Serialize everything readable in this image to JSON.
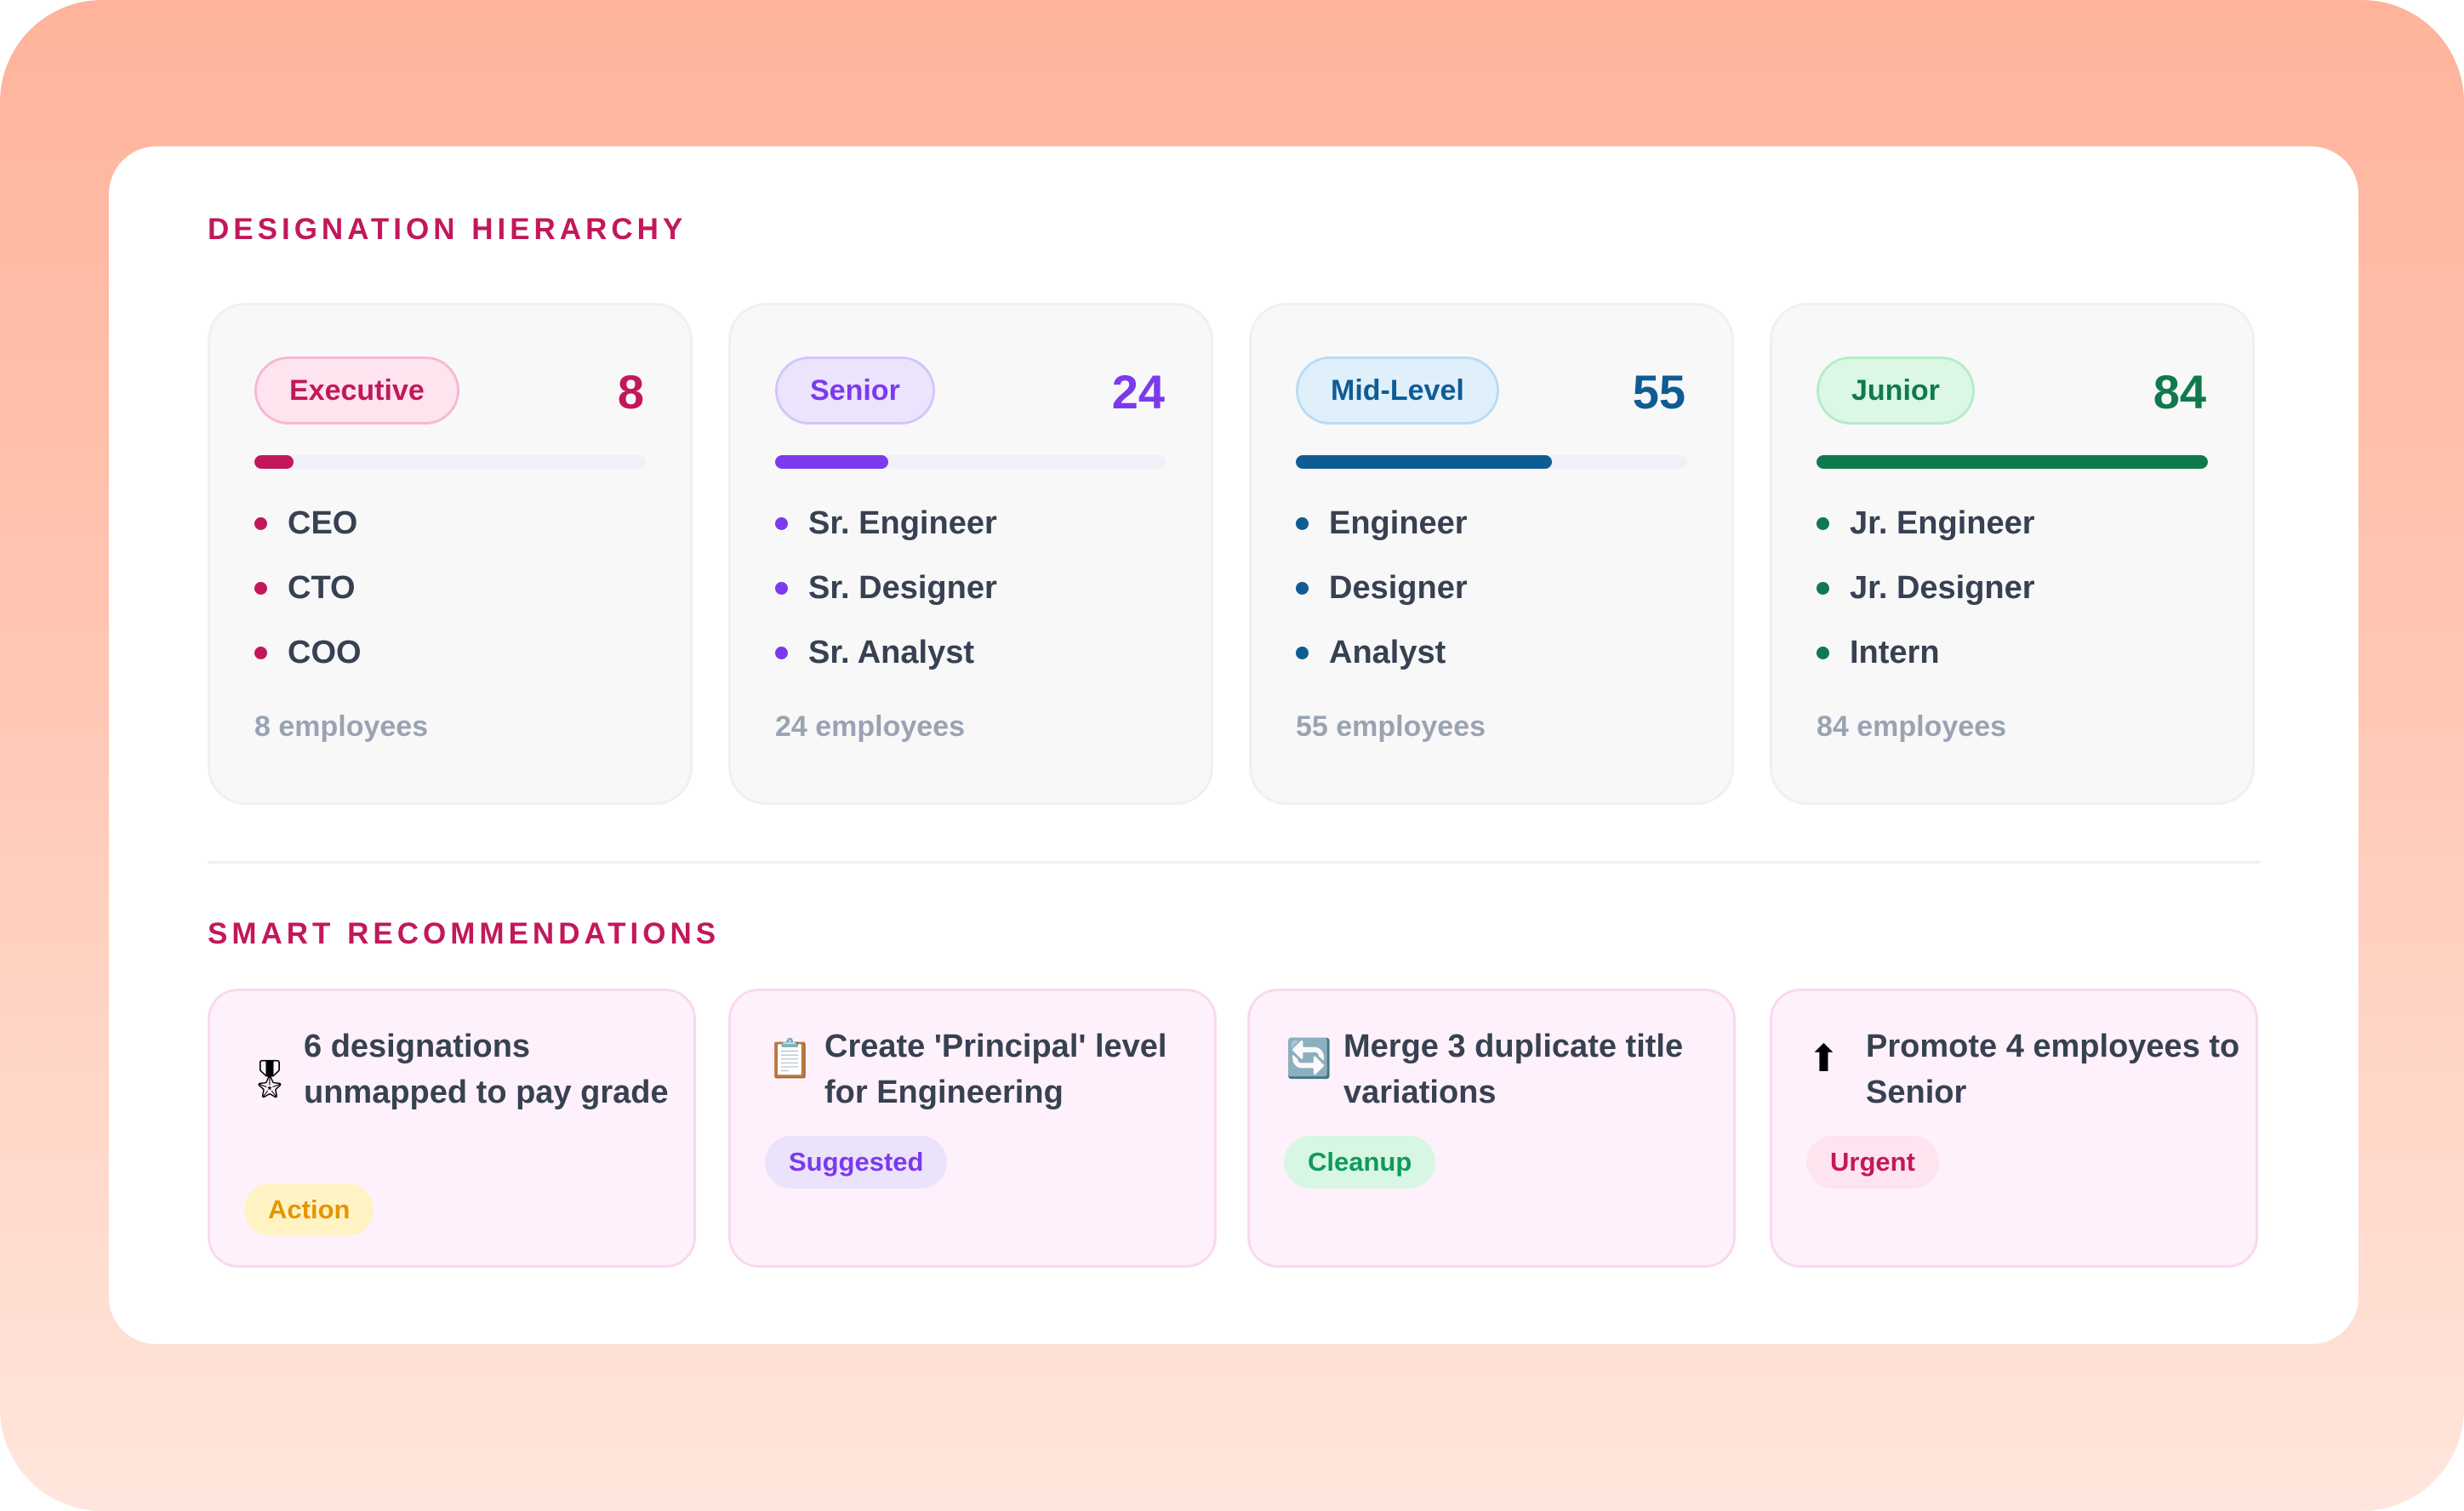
{
  "hierarchy": {
    "title": "DESIGNATION HIERARCHY",
    "tiers": [
      {
        "label": "Executive",
        "count": "8",
        "bar_fill_fraction": 0.1,
        "color": "#c2185b",
        "pill_bg": "#fde4ef",
        "pill_border": "#f6b8d2",
        "roles": [
          "CEO",
          "CTO",
          "COO"
        ],
        "employees": "8 employees"
      },
      {
        "label": "Senior",
        "count": "24",
        "bar_fill_fraction": 0.29,
        "color": "#7c3aed",
        "pill_bg": "#ece4fd",
        "pill_border": "#d5c4fa",
        "roles": [
          "Sr. Engineer",
          "Sr. Designer",
          "Sr. Analyst"
        ],
        "employees": "24 employees"
      },
      {
        "label": "Mid-Level",
        "count": "55",
        "bar_fill_fraction": 0.655,
        "color": "#0f5c94",
        "pill_bg": "#dff0fb",
        "pill_border": "#b8dcf4",
        "roles": [
          "Engineer",
          "Designer",
          "Analyst"
        ],
        "employees": "55 employees"
      },
      {
        "label": "Junior",
        "count": "84",
        "bar_fill_fraction": 1.0,
        "color": "#0f7a4d",
        "pill_bg": "#dcf7e6",
        "pill_border": "#b4ecc9",
        "roles": [
          "Jr. Engineer",
          "Jr. Designer",
          "Intern"
        ],
        "employees": "84 employees"
      }
    ]
  },
  "recommendations": {
    "title": "SMART RECOMMENDATIONS",
    "items": [
      {
        "icon": "medal-icon",
        "glyph": "🎖",
        "text": "6 designations unmapped to pay grade",
        "tag": "Action",
        "tag_color": "#e59400",
        "tag_bg": "#fff3c4"
      },
      {
        "icon": "clipboard-icon",
        "glyph": "📋",
        "text": "Create 'Principal' level for Engineering",
        "tag": "Suggested",
        "tag_color": "#7c3aed",
        "tag_bg": "#ebe3fb"
      },
      {
        "icon": "refresh-icon",
        "glyph": "🔄",
        "text": "Merge 3 duplicate title variations",
        "tag": "Cleanup",
        "tag_color": "#0f9b5a",
        "tag_bg": "#d8f6e4"
      },
      {
        "icon": "up-arrow-icon",
        "glyph": "⬆",
        "text": "Promote 4 employees to Senior",
        "tag": "Urgent",
        "tag_color": "#c2185b",
        "tag_bg": "#fde4ef"
      }
    ]
  }
}
